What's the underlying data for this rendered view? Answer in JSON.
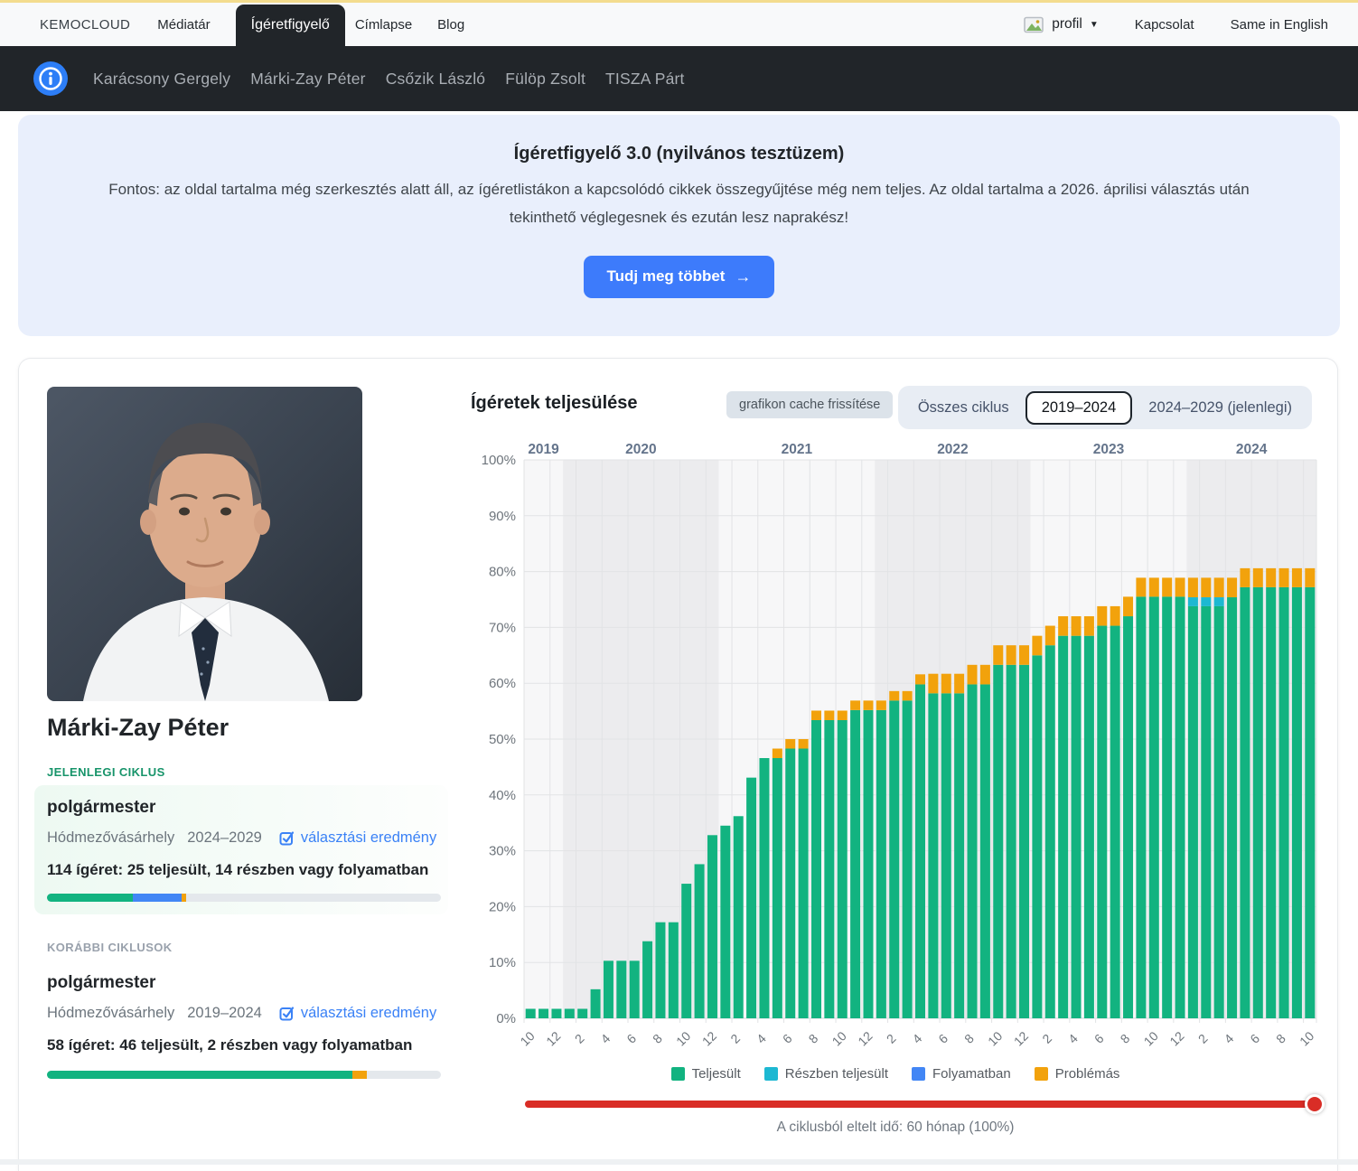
{
  "colors": {
    "green": "#12b380",
    "cyan": "#1db8d2",
    "blue": "#4286f5",
    "orange": "#f2a20c",
    "red": "#d92d26"
  },
  "topnav": {
    "brand": "KEMOCLOUD",
    "items": [
      "Médiatár",
      "Ígéretfigyelő",
      "Címlapse",
      "Blog"
    ],
    "active_item": "Ígéretfigyelő",
    "profile_label": "profil",
    "kapcsolat": "Kapcsolat",
    "language": "Same in English"
  },
  "personnav": {
    "items": [
      "Karácsony Gergely",
      "Márki-Zay Péter",
      "Csőzik László",
      "Fülöp Zsolt",
      "TISZA Párt"
    ]
  },
  "hero": {
    "title": "Ígéretfigyelő 3.0 (nyilvános tesztüzem)",
    "body_line1": "Fontos: az oldal tartalma még szerkesztés alatt áll, az ígéretlistákon a kapcsolódó cikkek összegyűjtése még nem teljes. Az oldal tartalma a 2026. áprilisi választás után",
    "body_line2": "tekinthető véglegesnek és ezután lesz naprakész!",
    "cta_label": "Tudj meg többet",
    "cta_arrow": "→"
  },
  "profile": {
    "name": "Márki-Zay Péter",
    "current_section_label": "JELENLEGI CIKLUS",
    "current": {
      "position": "polgármester",
      "city": "Hódmezővásárhely",
      "term": "2024–2029",
      "link": "választási eredmény",
      "summary": "114 ígéret: 25 teljesült, 14 részben vagy folyamatban",
      "progress": {
        "green": 21.9,
        "blue": 12.3,
        "orange": 1.2
      }
    },
    "previous_section_label": "KORÁBBI CIKLUSOK",
    "previous": {
      "position": "polgármester",
      "city": "Hódmezővásárhely",
      "term": "2019–2024",
      "link": "választási eredmény",
      "summary": "58 ígéret: 46 teljesült, 2 részben vagy folyamatban",
      "progress": {
        "green": 77.6,
        "orange": 3.5
      }
    }
  },
  "chart": {
    "title": "Ígéretek teljesülése",
    "cache_button": "grafikon cache frissítése",
    "tabs": [
      "Összes ciklus",
      "2019–2024",
      "2024–2029 (jelenlegi)"
    ],
    "active_tab": "2019–2024",
    "footer": "A ciklusból eltelt idő: 60 hónap (100%)"
  },
  "chart_data": {
    "type": "bar",
    "stacked": true,
    "title": "Ígéretek teljesülése",
    "period": "monthly bars from 2019-10 to 2024-10",
    "ylim": [
      0,
      100
    ],
    "grid": true,
    "y_ticks": [
      "0%",
      "10%",
      "20%",
      "30%",
      "40%",
      "50%",
      "60%",
      "70%",
      "80%",
      "90%",
      "100%"
    ],
    "year_bands": [
      {
        "year": "2019",
        "months": 3
      },
      {
        "year": "2020",
        "months": 12
      },
      {
        "year": "2021",
        "months": 12
      },
      {
        "year": "2022",
        "months": 12
      },
      {
        "year": "2023",
        "months": 12
      },
      {
        "year": "2024",
        "months": 10
      }
    ],
    "x_tick_labels": [
      "10",
      "12",
      "2",
      "4",
      "6",
      "8",
      "10",
      "12",
      "2",
      "4",
      "6",
      "8",
      "10",
      "12",
      "2",
      "4",
      "6",
      "8",
      "10",
      "12",
      "2",
      "4",
      "6",
      "8",
      "10",
      "12",
      "2",
      "4",
      "6",
      "8",
      "10"
    ],
    "legend": [
      {
        "label": "Teljesült",
        "color": "#12b380"
      },
      {
        "label": "Részben teljesült",
        "color": "#1db8d2"
      },
      {
        "label": "Folyamatban",
        "color": "#4286f5"
      },
      {
        "label": "Problémás",
        "color": "#f2a20c"
      }
    ],
    "legend_position": "bottom-center",
    "series": [
      {
        "name": "Teljesült",
        "values": [
          1.7,
          1.7,
          1.7,
          1.7,
          1.7,
          5.2,
          10.3,
          10.3,
          10.3,
          13.8,
          17.2,
          17.2,
          24.1,
          27.6,
          32.8,
          34.5,
          36.2,
          43.1,
          46.6,
          46.6,
          48.3,
          48.3,
          53.4,
          53.4,
          53.4,
          55.2,
          55.2,
          55.2,
          56.9,
          56.9,
          59.8,
          58.2,
          58.2,
          58.2,
          59.8,
          59.8,
          63.3,
          63.3,
          63.3,
          65.0,
          66.8,
          68.5,
          68.5,
          68.5,
          70.3,
          70.3,
          72.0,
          75.5,
          75.5,
          75.5,
          75.5,
          73.8,
          73.8,
          73.8,
          75.4,
          77.2,
          77.2,
          77.2,
          77.2,
          77.2,
          77.2
        ]
      },
      {
        "name": "Részben teljesült",
        "values": [
          0,
          0,
          0,
          0,
          0,
          0,
          0,
          0,
          0,
          0,
          0,
          0,
          0,
          0,
          0,
          0,
          0,
          0,
          0,
          0,
          0,
          0,
          0,
          0,
          0,
          0,
          0,
          0,
          0,
          0,
          0,
          0,
          0,
          0,
          0,
          0,
          0,
          0,
          0,
          0,
          0,
          0,
          0,
          0,
          0,
          0,
          0,
          0,
          0,
          0,
          0,
          1.6,
          1.6,
          1.6,
          0,
          0,
          0,
          0,
          0,
          0,
          0
        ]
      },
      {
        "name": "Folyamatban",
        "values": [
          0,
          0,
          0,
          0,
          0,
          0,
          0,
          0,
          0,
          0,
          0,
          0,
          0,
          0,
          0,
          0,
          0,
          0,
          0,
          0,
          0,
          0,
          0,
          0,
          0,
          0,
          0,
          0,
          0,
          0,
          0,
          0,
          0,
          0,
          0,
          0,
          0,
          0,
          0,
          0,
          0,
          0,
          0,
          0,
          0,
          0,
          0,
          0,
          0,
          0,
          0,
          0,
          0,
          0,
          0,
          0,
          0,
          0,
          0,
          0,
          0
        ]
      },
      {
        "name": "Problémás",
        "values": [
          0,
          0,
          0,
          0,
          0,
          0,
          0,
          0,
          0,
          0,
          0,
          0,
          0,
          0,
          0,
          0,
          0,
          0,
          0,
          1.7,
          1.7,
          1.7,
          1.7,
          1.7,
          1.7,
          1.7,
          1.7,
          1.7,
          1.7,
          1.7,
          1.8,
          3.5,
          3.5,
          3.5,
          3.5,
          3.5,
          3.5,
          3.5,
          3.5,
          3.5,
          3.5,
          3.5,
          3.5,
          3.5,
          3.5,
          3.5,
          3.5,
          3.4,
          3.4,
          3.4,
          3.4,
          3.5,
          3.5,
          3.5,
          3.5,
          3.4,
          3.4,
          3.4,
          3.4,
          3.4,
          3.4
        ]
      }
    ]
  }
}
